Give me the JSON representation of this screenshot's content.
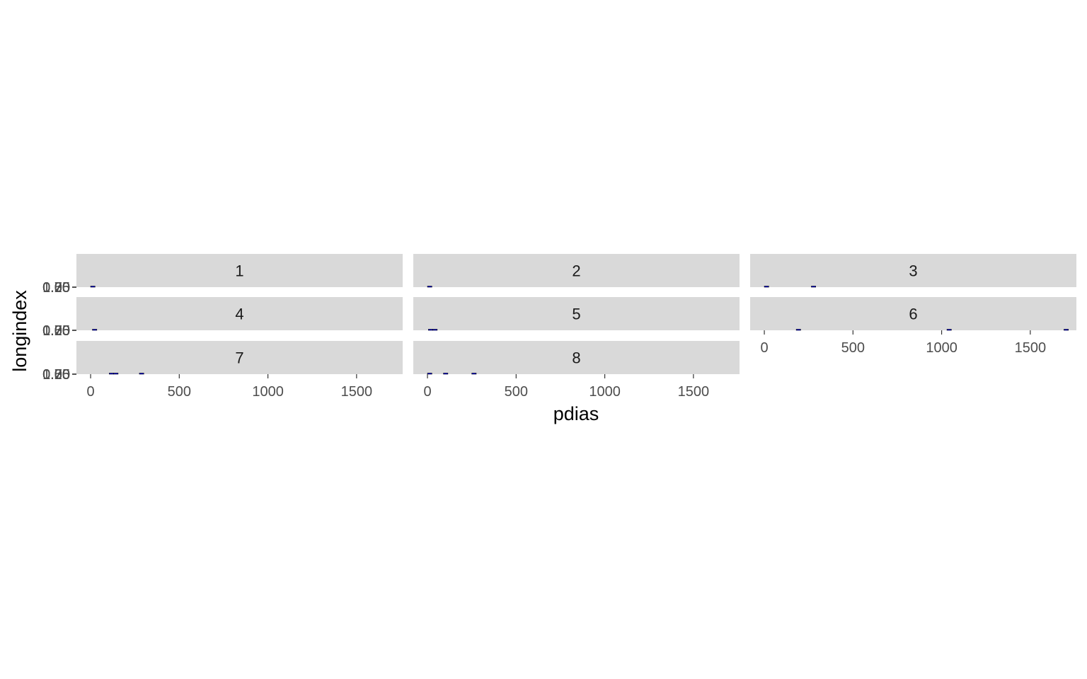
{
  "chart_data": {
    "type": "bar",
    "facet_by": "longindex",
    "xlabel": "pdias",
    "ylabel": "longindex",
    "xlim": [
      -80,
      1760
    ],
    "x_ticks": [
      0,
      500,
      1000,
      1500
    ],
    "y_tick_labels": [
      "0.00",
      "0.25",
      "0.50",
      "0.75",
      "1.00"
    ],
    "grid": false,
    "colors": {
      "strip": "#d9d9d9",
      "tick": "#333333",
      "bar_fill": "#0000ff",
      "bar_outline": "#000000"
    },
    "panels": [
      {
        "label": "1",
        "bars": [
          {
            "x": 0,
            "width": 25
          }
        ]
      },
      {
        "label": "2",
        "bars": [
          {
            "x": 0,
            "width": 25
          }
        ]
      },
      {
        "label": "3",
        "bars": [
          {
            "x": 0,
            "width": 25
          },
          {
            "x": 265,
            "width": 25
          }
        ]
      },
      {
        "label": "4",
        "bars": [
          {
            "x": 10,
            "width": 25
          }
        ]
      },
      {
        "label": "5",
        "bars": [
          {
            "x": 5,
            "width": 25
          },
          {
            "x": 30,
            "width": 25
          }
        ]
      },
      {
        "label": "6",
        "bars": [
          {
            "x": 180,
            "width": 25
          },
          {
            "x": 1030,
            "width": 25
          },
          {
            "x": 1690,
            "width": 25
          }
        ]
      },
      {
        "label": "7",
        "bars": [
          {
            "x": 105,
            "width": 25
          },
          {
            "x": 130,
            "width": 25
          },
          {
            "x": 275,
            "width": 25
          }
        ]
      },
      {
        "label": "8",
        "bars": [
          {
            "x": 0,
            "width": 25
          },
          {
            "x": 90,
            "width": 25
          },
          {
            "x": 250,
            "width": 25
          }
        ]
      }
    ]
  }
}
